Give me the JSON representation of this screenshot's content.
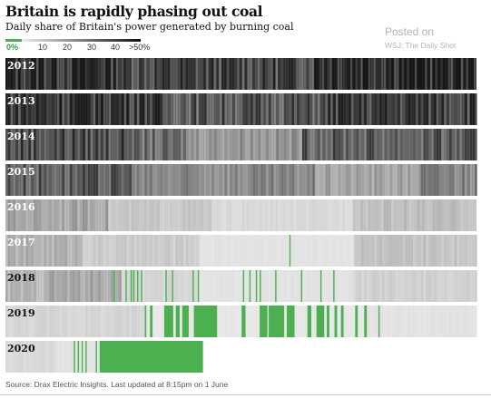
{
  "chart_data": {
    "type": "heatmap",
    "title": "Britain is rapidly phasing out coal",
    "subtitle": "Daily share of Britain's power generated by burning coal",
    "legend": {
      "tick_labels": [
        "0%",
        "10",
        "20",
        "30",
        "40",
        ">50%"
      ],
      "zero_color": "#4caf50",
      "low_color": "#ececec",
      "high_color": "#111111",
      "max_percent": 50
    },
    "series": [
      {
        "name": "2012",
        "days": 366,
        "segments": [
          {
            "start": 1,
            "end": 90,
            "value": 44
          },
          {
            "start": 91,
            "end": 240,
            "value": 38
          },
          {
            "start": 241,
            "end": 366,
            "value": 46
          }
        ]
      },
      {
        "name": "2013",
        "days": 365,
        "segments": [
          {
            "start": 1,
            "end": 120,
            "value": 42
          },
          {
            "start": 121,
            "end": 250,
            "value": 34
          },
          {
            "start": 251,
            "end": 365,
            "value": 40
          }
        ]
      },
      {
        "name": "2014",
        "days": 365,
        "segments": [
          {
            "start": 1,
            "end": 100,
            "value": 36
          },
          {
            "start": 101,
            "end": 140,
            "value": 28
          },
          {
            "start": 141,
            "end": 230,
            "value": 20
          },
          {
            "start": 231,
            "end": 365,
            "value": 32
          }
        ]
      },
      {
        "name": "2015",
        "days": 365,
        "segments": [
          {
            "start": 1,
            "end": 100,
            "value": 32
          },
          {
            "start": 101,
            "end": 240,
            "value": 22
          },
          {
            "start": 241,
            "end": 320,
            "value": 16
          },
          {
            "start": 321,
            "end": 365,
            "value": 24
          }
        ]
      },
      {
        "name": "2016",
        "days": 366,
        "segments": [
          {
            "start": 1,
            "end": 80,
            "value": 16
          },
          {
            "start": 81,
            "end": 160,
            "value": 8
          },
          {
            "start": 161,
            "end": 270,
            "value": 4
          },
          {
            "start": 271,
            "end": 366,
            "value": 10
          }
        ]
      },
      {
        "name": "2017",
        "days": 365,
        "segments": [
          {
            "start": 1,
            "end": 60,
            "value": 13
          },
          {
            "start": 61,
            "end": 150,
            "value": 7
          },
          {
            "start": 151,
            "end": 270,
            "value": 2
          },
          {
            "start": 271,
            "end": 365,
            "value": 9
          }
        ]
      },
      {
        "name": "2018",
        "days": 365,
        "segments": [
          {
            "start": 1,
            "end": 30,
            "value": 12
          },
          {
            "start": 31,
            "end": 90,
            "value": 15
          },
          {
            "start": 91,
            "end": 150,
            "value": 5
          },
          {
            "start": 151,
            "end": 270,
            "value": 2
          },
          {
            "start": 271,
            "end": 365,
            "value": 6
          }
        ]
      },
      {
        "name": "2019",
        "days": 365,
        "segments": [
          {
            "start": 1,
            "end": 110,
            "value": 5
          },
          {
            "start": 111,
            "end": 280,
            "value": 1
          },
          {
            "start": 281,
            "end": 365,
            "value": 2
          }
        ]
      },
      {
        "name": "2020",
        "days": 153,
        "segments": [
          {
            "start": 1,
            "end": 40,
            "value": 4
          },
          {
            "start": 41,
            "end": 70,
            "value": 2
          },
          {
            "start": 71,
            "end": 100,
            "value": 1
          }
        ]
      }
    ],
    "zero_days": {
      "2017": [
        221
      ],
      "2018": [
        85,
        94,
        98,
        100,
        103,
        106,
        125,
        130,
        146,
        150,
        185,
        190,
        195,
        198,
        210,
        230,
        245,
        255
      ],
      "2019": [
        {
          "start": 109,
          "end": 109
        },
        {
          "start": 113,
          "end": 114
        },
        {
          "start": 124,
          "end": 130
        },
        {
          "start": 133,
          "end": 135
        },
        {
          "start": 138,
          "end": 142
        },
        {
          "start": 147,
          "end": 164
        },
        {
          "start": 184,
          "end": 186
        },
        {
          "start": 198,
          "end": 203
        },
        {
          "start": 205,
          "end": 216
        },
        {
          "start": 219,
          "end": 224
        },
        {
          "start": 235,
          "end": 237
        },
        {
          "start": 242,
          "end": 247
        },
        {
          "start": 250,
          "end": 251
        },
        {
          "start": 256,
          "end": 257
        },
        {
          "start": 261,
          "end": 262
        },
        {
          "start": 272,
          "end": 273
        },
        {
          "start": 279,
          "end": 280
        },
        {
          "start": 290,
          "end": 290
        }
      ],
      "2020": [
        {
          "start": 54,
          "end": 54
        },
        {
          "start": 57,
          "end": 57
        },
        {
          "start": 60,
          "end": 60
        },
        {
          "start": 63,
          "end": 63
        },
        {
          "start": 71,
          "end": 71
        },
        {
          "start": 74,
          "end": 153
        }
      ]
    }
  },
  "source": "Source: Drax Electric Insights. Last updated at 8:15pm on 1 June",
  "watermark": {
    "line1": "Posted on",
    "line2": "WSJ: The Daily Shot"
  }
}
